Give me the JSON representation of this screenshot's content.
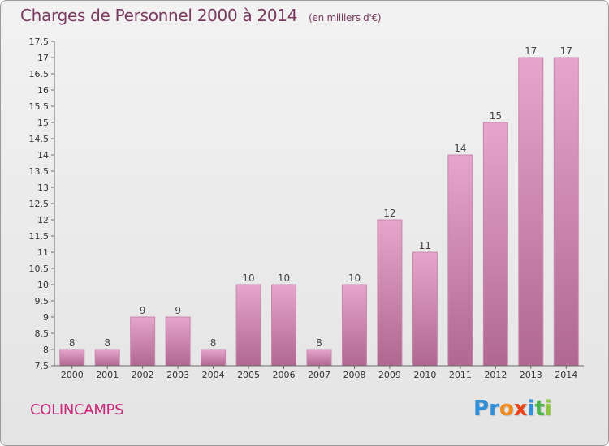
{
  "header": {
    "title": "Charges de Personnel 2000 à 2014",
    "subtitle": "(en milliers d'€)"
  },
  "footer": {
    "town": "COLINCAMPS",
    "brand": "Proxiti",
    "brand_letters": [
      {
        "ch": "P",
        "color": "#2f8fd8"
      },
      {
        "ch": "r",
        "color": "#2f8fd8"
      },
      {
        "ch": "o",
        "color": "#f08a1c"
      },
      {
        "ch": "x",
        "color": "#e8451c"
      },
      {
        "ch": "i",
        "color": "#2f8fd8"
      },
      {
        "ch": "t",
        "color": "#4ab34a"
      },
      {
        "ch": "i",
        "color": "#8dc63f"
      }
    ]
  },
  "colors": {
    "bar_top": "#e6a6cc",
    "bar_bottom": "#b06890",
    "bar_edge": "#c886ad",
    "title": "#7a3a60",
    "town": "#c8287a"
  },
  "chart_data": {
    "type": "bar",
    "categories": [
      "2000",
      "2001",
      "2002",
      "2003",
      "2004",
      "2005",
      "2006",
      "2007",
      "2008",
      "2009",
      "2010",
      "2011",
      "2012",
      "2013",
      "2014"
    ],
    "values": [
      8,
      8,
      9,
      9,
      8,
      10,
      10,
      8,
      10,
      12,
      11,
      14,
      15,
      17,
      17
    ],
    "data_labels": [
      "8",
      "8",
      "9",
      "9",
      "8",
      "10",
      "10",
      "8",
      "10",
      "12",
      "11",
      "14",
      "15",
      "17",
      "17"
    ],
    "ylim": [
      7.5,
      17.5
    ],
    "yticks": [
      "7.5",
      "8",
      "8.5",
      "9",
      "9.5",
      "10",
      "10.5",
      "11",
      "11.5",
      "12",
      "12.5",
      "13",
      "13.5",
      "14",
      "14.5",
      "15",
      "15.5",
      "16",
      "16.5",
      "17",
      "17.5"
    ],
    "grid": false,
    "title": "Charges de Personnel 2000 à 2014",
    "subtitle": "(en milliers d'€)"
  }
}
